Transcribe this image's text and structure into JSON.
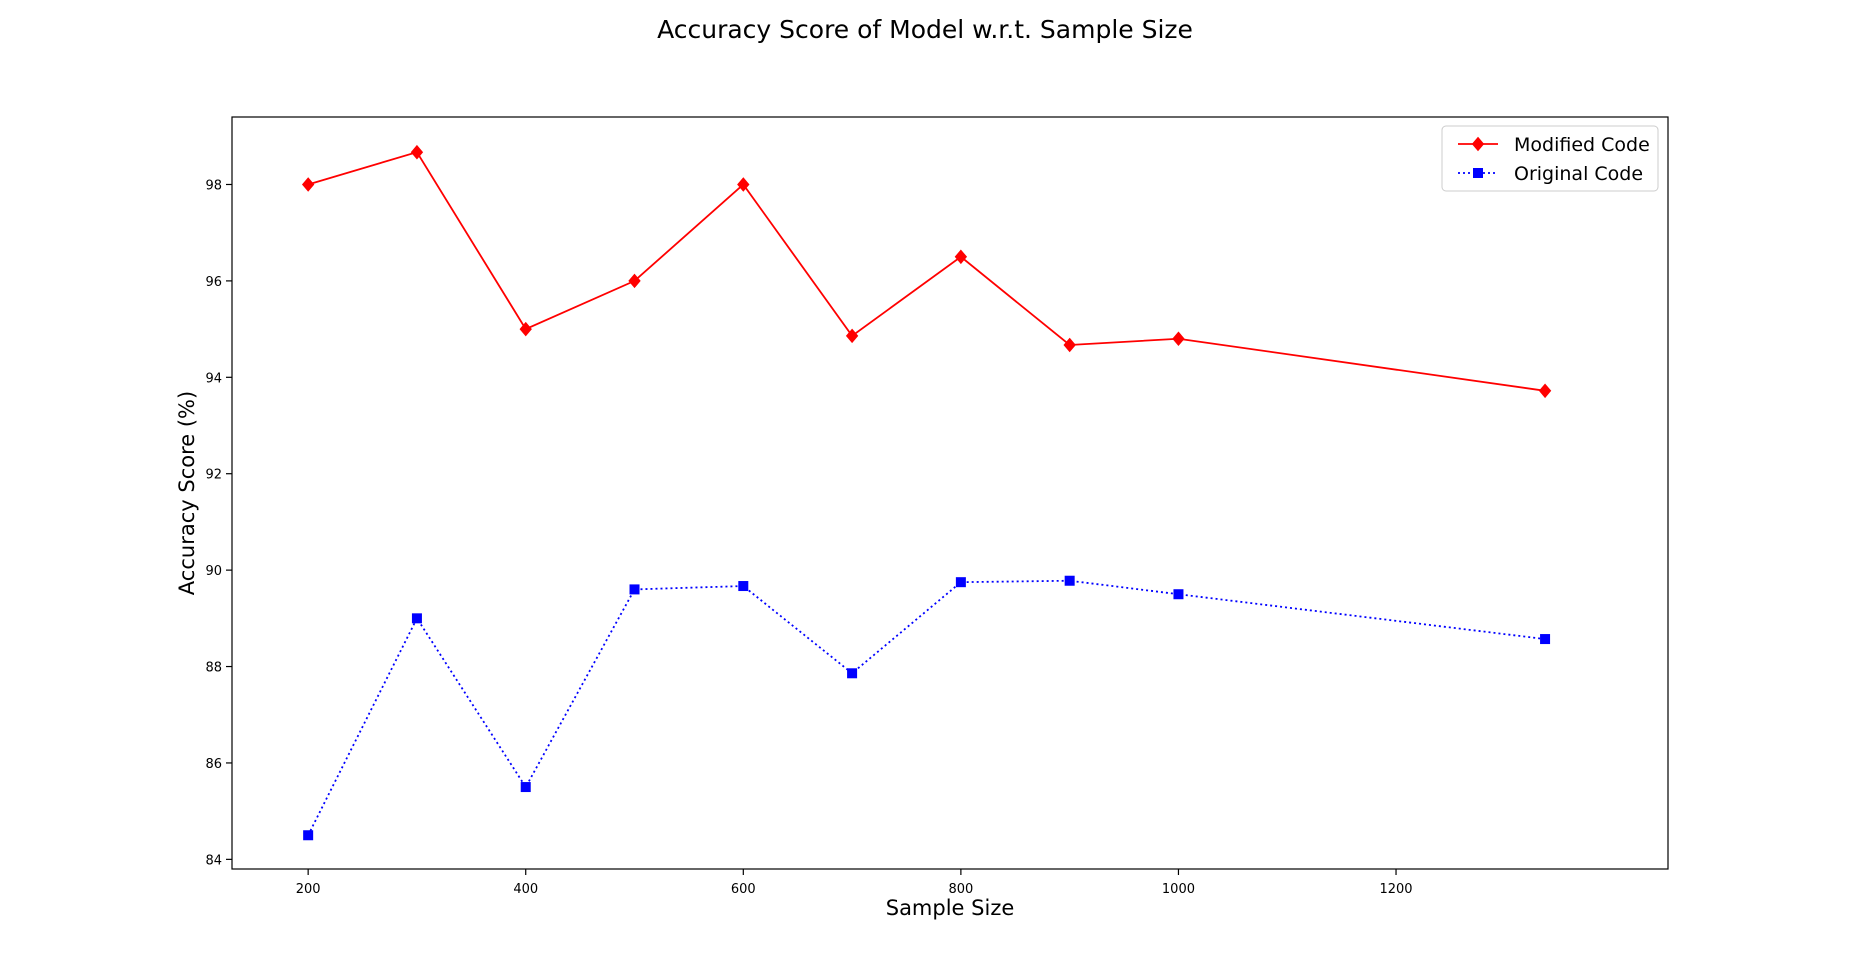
{
  "chart_data": {
    "type": "line",
    "title": "Accuracy Score of Model w.r.t. Sample Size",
    "xlabel": "Sample Size",
    "ylabel": "Accuracy Score (%)",
    "xlim": [
      130,
      1450
    ],
    "ylim": [
      83.8,
      99.4
    ],
    "xticks": [
      200,
      400,
      600,
      800,
      1000,
      1200
    ],
    "yticks": [
      84,
      86,
      88,
      90,
      92,
      94,
      96,
      98
    ],
    "grid": false,
    "legend_position": "top-right",
    "x": [
      200,
      300,
      400,
      500,
      600,
      700,
      800,
      900,
      1000,
      1337
    ],
    "series": [
      {
        "name": "Modified Code",
        "color": "#ff0000",
        "line_style": "solid",
        "marker": "diamond",
        "values": [
          98.0,
          98.67,
          95.0,
          96.0,
          98.0,
          94.86,
          96.5,
          94.67,
          94.8,
          93.72
        ]
      },
      {
        "name": "Original Code",
        "color": "#0000ff",
        "line_style": "dotted",
        "marker": "square",
        "values": [
          84.5,
          89.0,
          85.5,
          89.6,
          89.67,
          87.86,
          89.75,
          89.78,
          89.5,
          88.57
        ]
      }
    ]
  }
}
